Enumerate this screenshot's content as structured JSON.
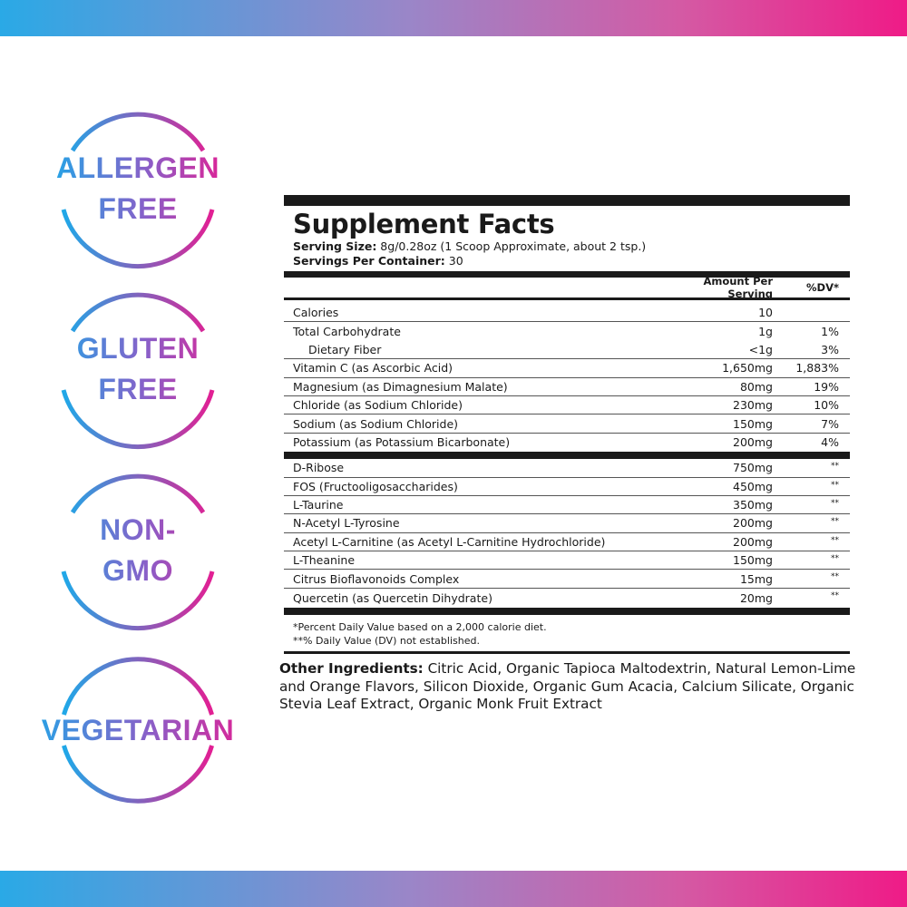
{
  "colors": {
    "gradient_start": "#1fa8e8",
    "gradient_end": "#e21f93",
    "text": "#1a1a1a"
  },
  "badges": [
    {
      "lines": [
        "ALLERGEN",
        "FREE"
      ]
    },
    {
      "lines": [
        "GLUTEN",
        "FREE"
      ]
    },
    {
      "lines": [
        "NON-",
        "GMO"
      ]
    },
    {
      "lines": [
        "VEGETARIAN"
      ]
    }
  ],
  "facts": {
    "title": "Supplement Facts",
    "serving_size_label": "Serving Size:",
    "serving_size_value": " 8g/0.28oz (1 Scoop Approximate, about 2 tsp.)",
    "servings_label": "Servings Per Container:",
    "servings_value": " 30",
    "header": {
      "amount": "Amount Per Serving",
      "dv": "%DV*"
    },
    "rows": [
      {
        "name": "Calories",
        "amount": "10",
        "dv": ""
      },
      {
        "name": "Total Carbohydrate",
        "amount": "1g",
        "dv": "1%"
      },
      {
        "name": "Dietary Fiber",
        "amount": "<1g",
        "dv": "3%"
      },
      {
        "name": "Vitamin C (as Ascorbic Acid)",
        "amount": "1,650mg",
        "dv": "1,883%"
      },
      {
        "name": "Magnesium (as Dimagnesium Malate)",
        "amount": "80mg",
        "dv": "19%"
      },
      {
        "name": "Chloride (as Sodium Chloride)",
        "amount": "230mg",
        "dv": "10%"
      },
      {
        "name": "Sodium (as Sodium Chloride)",
        "amount": "150mg",
        "dv": "7%"
      },
      {
        "name": "Potassium (as Potassium Bicarbonate)",
        "amount": "200mg",
        "dv": "4%"
      }
    ],
    "rows2": [
      {
        "name": "D-Ribose",
        "amount": "750mg",
        "dv": "**"
      },
      {
        "name": "FOS (Fructooligosaccharides)",
        "amount": "450mg",
        "dv": "**"
      },
      {
        "name": "L-Taurine",
        "amount": "350mg",
        "dv": "**"
      },
      {
        "name": "N-Acetyl L-Tyrosine",
        "amount": "200mg",
        "dv": "**"
      },
      {
        "name": "Acetyl L-Carnitine (as Acetyl L-Carnitine Hydrochloride)",
        "amount": "200mg",
        "dv": "**"
      },
      {
        "name": "L-Theanine",
        "amount": "150mg",
        "dv": "**"
      },
      {
        "name": "Citrus Bioflavonoids Complex",
        "amount": "15mg",
        "dv": "**"
      },
      {
        "name": "Quercetin (as Quercetin Dihydrate)",
        "amount": "20mg",
        "dv": "**"
      }
    ],
    "footnote1": "*Percent Daily Value based on a 2,000 calorie diet.",
    "footnote2": "**% Daily Value (DV) not established."
  },
  "other": {
    "label": "Other Ingredients:",
    "text": " Citric Acid, Organic Tapioca Maltodextrin, Natural Lemon-Lime and Orange Flavors, Silicon Dioxide, Organic Gum Acacia, Calcium Silicate, Organic Stevia Leaf Extract, Organic Monk Fruit Extract"
  }
}
